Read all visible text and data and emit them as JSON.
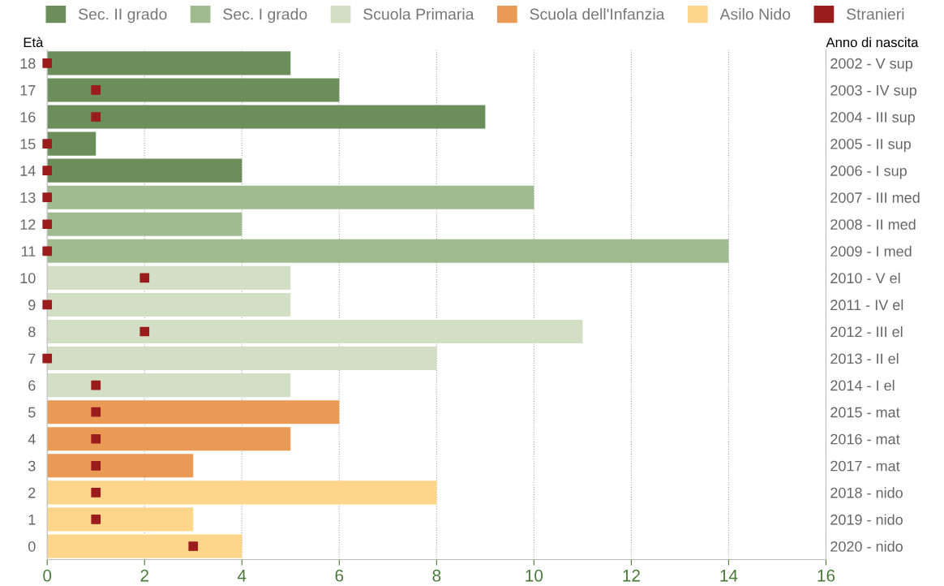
{
  "chart_data": {
    "type": "bar",
    "orientation": "horizontal",
    "ylabel": "Età",
    "y2label": "Anno di nascita",
    "categories": [
      "18",
      "17",
      "16",
      "15",
      "14",
      "13",
      "12",
      "11",
      "10",
      "9",
      "8",
      "7",
      "6",
      "5",
      "4",
      "3",
      "2",
      "1",
      "0"
    ],
    "y2_categories": [
      "2002 - V sup",
      "2003 - IV sup",
      "2004 - III sup",
      "2005 - II sup",
      "2006 - I sup",
      "2007 - III med",
      "2008 - II med",
      "2009 - I med",
      "2010 - V el",
      "2011 - IV el",
      "2012 - III el",
      "2013 - II el",
      "2014 - I el",
      "2015 - mat",
      "2016 - mat",
      "2017 - mat",
      "2018 - nido",
      "2019 - nido",
      "2020 - nido"
    ],
    "series": [
      {
        "name": "Sec. II grado",
        "color": "#6b8e5a",
        "values": [
          5,
          6,
          9,
          1,
          4,
          null,
          null,
          null,
          null,
          null,
          null,
          null,
          null,
          null,
          null,
          null,
          null,
          null,
          null
        ]
      },
      {
        "name": "Sec. I grado",
        "color": "#9fbb8f",
        "values": [
          null,
          null,
          null,
          null,
          null,
          10,
          4,
          14,
          null,
          null,
          null,
          null,
          null,
          null,
          null,
          null,
          null,
          null,
          null
        ]
      },
      {
        "name": "Scuola Primaria",
        "color": "#d3dfc5",
        "values": [
          null,
          null,
          null,
          null,
          null,
          null,
          null,
          null,
          5,
          5,
          11,
          8,
          5,
          null,
          null,
          null,
          null,
          null,
          null
        ]
      },
      {
        "name": "Scuola dell'Infanzia",
        "color": "#e99a55",
        "values": [
          null,
          null,
          null,
          null,
          null,
          null,
          null,
          null,
          null,
          null,
          null,
          null,
          null,
          6,
          5,
          3,
          null,
          null,
          null
        ]
      },
      {
        "name": "Asilo Nido",
        "color": "#fdd58b",
        "values": [
          null,
          null,
          null,
          null,
          null,
          null,
          null,
          null,
          null,
          null,
          null,
          null,
          null,
          null,
          null,
          null,
          8,
          3,
          4
        ]
      },
      {
        "name": "Stranieri",
        "type": "scatter",
        "color": "#9b1c1c",
        "marker": "square",
        "values": [
          0,
          1,
          1,
          0,
          0,
          0,
          0,
          0,
          2,
          0,
          2,
          0,
          1,
          1,
          1,
          1,
          1,
          1,
          3
        ]
      }
    ],
    "xlim": [
      0,
      16
    ],
    "xticks": [
      0,
      2,
      4,
      6,
      8,
      10,
      12,
      14,
      16
    ],
    "grid": "x",
    "line_style": "dotted",
    "legend": "top"
  }
}
